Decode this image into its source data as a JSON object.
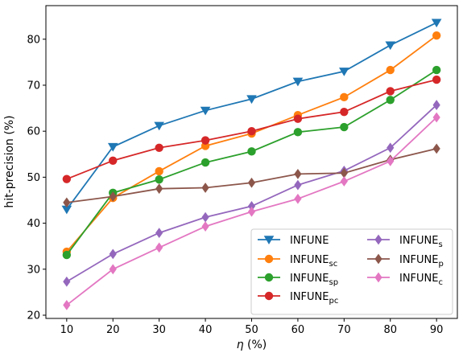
{
  "chart_data": {
    "type": "line",
    "title": "",
    "xlabel_symbol": "η",
    "xlabel_unit": " (%)",
    "ylabel": "hit-precision (%)",
    "x": [
      10,
      20,
      30,
      40,
      50,
      60,
      70,
      80,
      90
    ],
    "xticks": [
      "10",
      "20",
      "30",
      "40",
      "50",
      "60",
      "70",
      "80",
      "90"
    ],
    "yticks": [
      "20",
      "30",
      "40",
      "50",
      "60",
      "70",
      "80"
    ],
    "xlim": [
      5.5,
      94.5
    ],
    "ylim": [
      19.3,
      87.3
    ],
    "grid": false,
    "legend_position": "lower-right",
    "series": [
      {
        "name": "INFUNE",
        "sub": "",
        "color": "#1f77b4",
        "marker": "triangle-down",
        "values": [
          43.0,
          56.6,
          61.2,
          64.5,
          67.0,
          70.8,
          73.0,
          78.7,
          83.6
        ]
      },
      {
        "name": "INFUNE",
        "sub": "sc",
        "color": "#ff7f0e",
        "marker": "circle",
        "values": [
          33.8,
          45.5,
          51.3,
          56.8,
          59.5,
          63.5,
          67.4,
          73.3,
          80.8
        ]
      },
      {
        "name": "INFUNE",
        "sub": "sp",
        "color": "#2ca02c",
        "marker": "circle",
        "values": [
          33.1,
          46.6,
          49.5,
          53.2,
          55.6,
          59.8,
          60.9,
          66.8,
          73.3
        ]
      },
      {
        "name": "INFUNE",
        "sub": "pc",
        "color": "#d62728",
        "marker": "circle",
        "values": [
          49.6,
          53.6,
          56.4,
          58.0,
          60.0,
          62.7,
          64.2,
          68.7,
          71.2
        ]
      },
      {
        "name": "INFUNE",
        "sub": "s",
        "color": "#9467bd",
        "marker": "diamond",
        "values": [
          27.3,
          33.3,
          37.9,
          41.3,
          43.7,
          48.3,
          51.4,
          56.4,
          65.7
        ]
      },
      {
        "name": "INFUNE",
        "sub": "p",
        "color": "#8c564b",
        "marker": "diamond",
        "values": [
          44.5,
          45.8,
          47.5,
          47.7,
          48.8,
          50.7,
          50.9,
          53.8,
          56.2
        ]
      },
      {
        "name": "INFUNE",
        "sub": "c",
        "color": "#e377c2",
        "marker": "diamond",
        "values": [
          22.2,
          30.0,
          34.7,
          39.3,
          42.5,
          45.3,
          49.1,
          53.5,
          63.0
        ]
      }
    ]
  }
}
